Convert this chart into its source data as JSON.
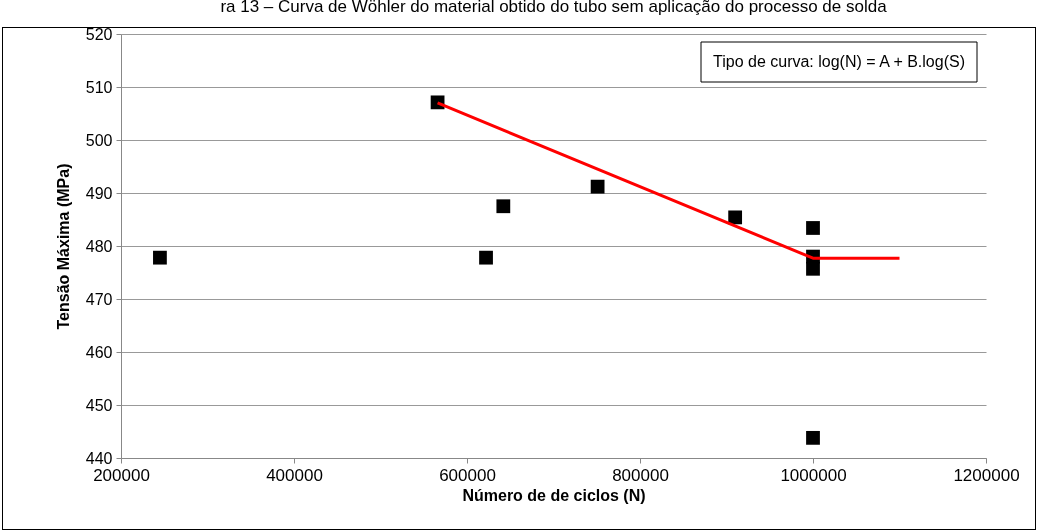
{
  "chart_data": {
    "type": "scatter",
    "title": "ra 13 – Curva de Wöhler do material obtido do tubo sem aplicação do processo de solda",
    "xlabel": "Número de de ciclos (N)",
    "ylabel": "Tensão Máxima (MPa)",
    "annotations": [
      "Tipo de curva: log(N) = A + B.log(S)"
    ],
    "series": [
      {
        "color": "#000000",
        "marker": "square",
        "x": [
          245000,
          566000,
          622000,
          642000,
          751000,
          910000,
          1000000,
          1000000,
          1000000,
          1000000
        ],
        "values": [
          477.8,
          507.1,
          477.8,
          487.5,
          491.2,
          485.4,
          483.4,
          478.0,
          475.7,
          443.8
        ]
      },
      {
        "type": "line",
        "color": "#ff0000",
        "marker": "none",
        "x": [
          566000,
          1000000,
          1100000
        ],
        "values": [
          507.0,
          477.7,
          477.7
        ]
      }
    ],
    "xlim": [
      200000,
      1200000
    ],
    "xticks": [
      200000,
      400000,
      600000,
      800000,
      1000000,
      1200000
    ],
    "ylim": [
      440,
      520
    ],
    "yticks": [
      440,
      450,
      460,
      470,
      480,
      490,
      500,
      510,
      520
    ],
    "grid": "y"
  }
}
